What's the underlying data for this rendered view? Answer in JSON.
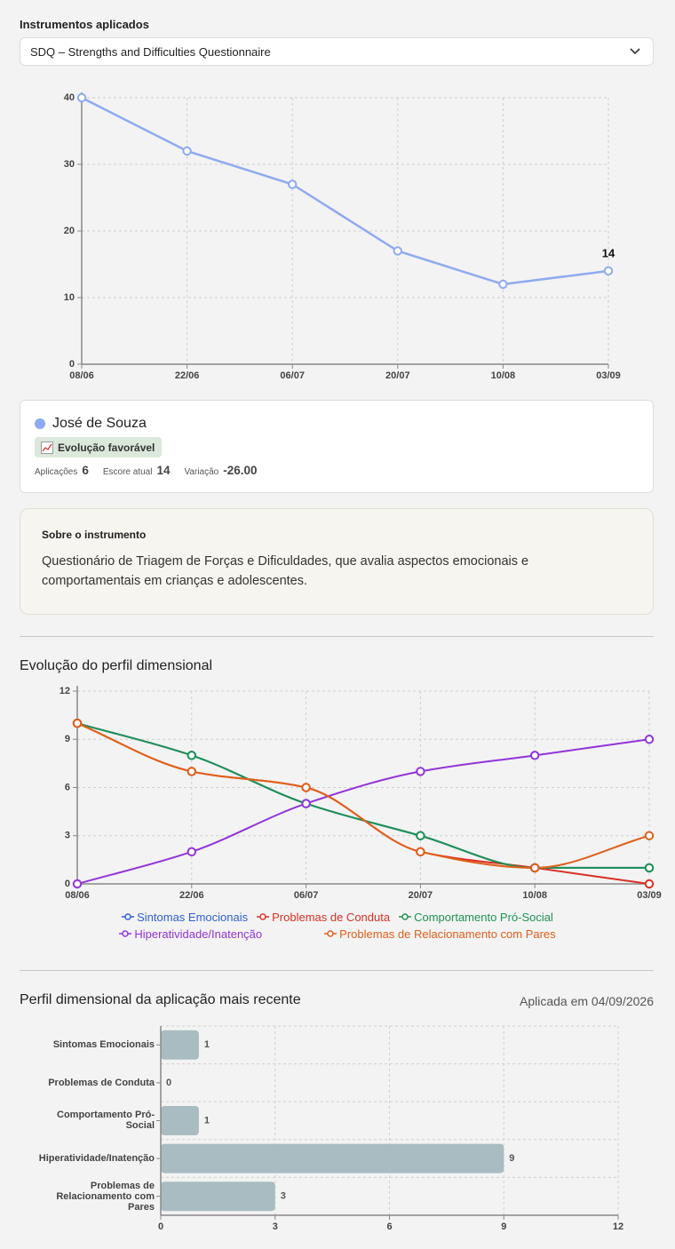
{
  "instruments": {
    "label": "Instrumentos aplicados",
    "selected": "SDQ – Strengths and Difficulties Questionnaire"
  },
  "patient": {
    "name": "José de Souza",
    "status": "Evolução favorável",
    "stats": [
      {
        "label": "Aplicações",
        "value": 6
      },
      {
        "label": "Escore atual",
        "value": 14
      },
      {
        "label": "Variação",
        "value": "-26.00"
      }
    ]
  },
  "about": {
    "title": "Sobre o instrumento",
    "text": "Questionário de Triagem de Forças e Dificuldades, que avalia aspectos emocionais e comportamentais em crianças e adolescentes."
  },
  "chart_data": [
    {
      "type": "line",
      "categories": [
        "08/06",
        "22/06",
        "06/07",
        "20/07",
        "10/08",
        "03/09"
      ],
      "values": [
        40,
        32,
        27,
        17,
        12,
        14
      ],
      "color": "#8eaaf0",
      "data_labels": "last",
      "ylim": [
        0,
        40
      ],
      "yticks": [
        0,
        10,
        20,
        30,
        40
      ],
      "grid": true,
      "curve": "linear"
    },
    {
      "type": "line",
      "title": "Evolução do perfil dimensional",
      "categories": [
        "08/06",
        "22/06",
        "06/07",
        "20/07",
        "10/08",
        "03/09"
      ],
      "series": [
        {
          "name": "Sintomas Emocionais",
          "color": "#2f5fd0",
          "values": [
            10,
            8,
            5,
            3,
            1,
            1
          ]
        },
        {
          "name": "Problemas de Conduta",
          "color": "#d93025",
          "values": [
            10,
            7,
            6,
            2,
            1,
            0
          ]
        },
        {
          "name": "Comportamento Pró-Social",
          "color": "#1e9254",
          "values": [
            10,
            8,
            5,
            3,
            1,
            1
          ]
        },
        {
          "name": "Hiperatividade/Inatenção",
          "color": "#9234d9",
          "values": [
            0,
            2,
            5,
            7,
            8,
            9
          ]
        },
        {
          "name": "Problemas de Relacionamento com Pares",
          "color": "#e0601a",
          "values": [
            10,
            7,
            6,
            2,
            1,
            3
          ]
        }
      ],
      "ylim": [
        0,
        12
      ],
      "yticks": [
        0,
        3,
        6,
        9,
        12
      ],
      "grid": true,
      "curve": "monotone",
      "legend": "bottom"
    },
    {
      "type": "hbar",
      "title": "Perfil dimensional da aplicação mais recente",
      "subtitle": "Aplicada em 04/09/2026",
      "categories": [
        "Sintomas Emocionais",
        "Problemas de Conduta",
        "Comportamento Pró-Social",
        "Hiperatividade/Inatenção",
        "Problemas de Relacionamento com Pares"
      ],
      "values": [
        1,
        0,
        1,
        9,
        3
      ],
      "color": "#a9bcc2",
      "xlim": [
        0,
        12
      ],
      "xticks": [
        0,
        3,
        6,
        9,
        12
      ],
      "grid": true
    }
  ]
}
